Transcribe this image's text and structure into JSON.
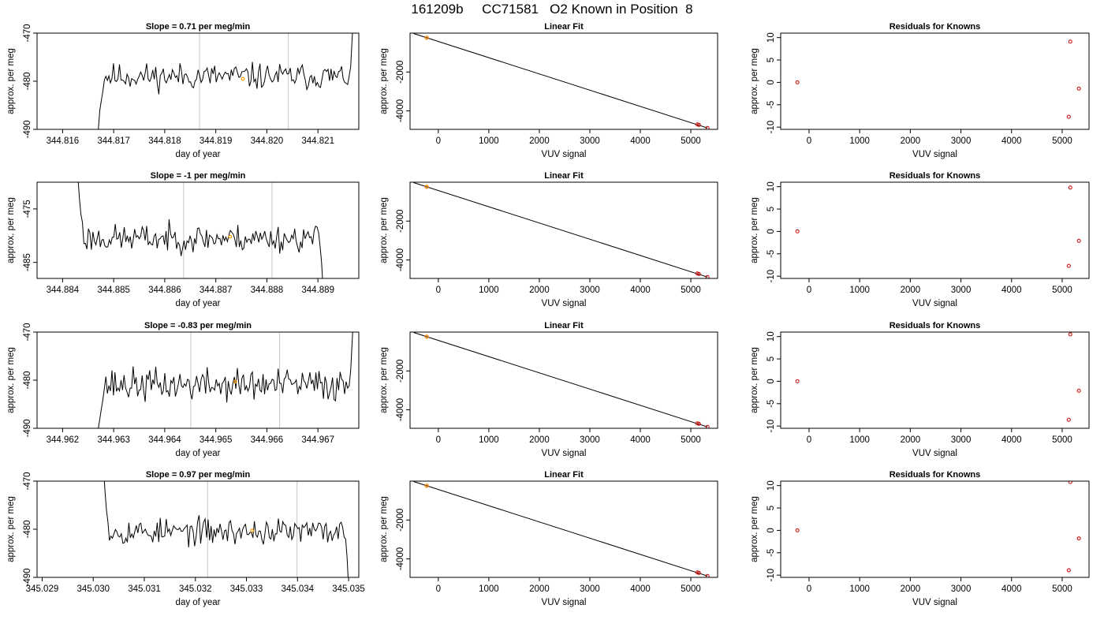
{
  "figure": {
    "title": "161209b     CC71581   O2 Known in Position  8"
  },
  "colors": {
    "trace": "#000000",
    "guide_line": "#c8c8c8",
    "known_point": "#cc0000",
    "highlight": "#ff9900",
    "fit_line": "#000000"
  },
  "chart_data": [
    {
      "type": "line",
      "title": "Slope =  0.71  per meg/min",
      "xlabel": "day of year",
      "ylabel": "approx. per meg",
      "xlim": [
        344.8155,
        344.8218
      ],
      "ylim": [
        -490,
        -470
      ],
      "x_ticks": [
        "344.816",
        "344.817",
        "344.818",
        "344.819",
        "344.820",
        "344.821"
      ],
      "x_tick_values": [
        344.816,
        344.817,
        344.818,
        344.819,
        344.82,
        344.821
      ],
      "y_ticks": [
        "-490",
        "-480",
        "-470"
      ],
      "y_tick_values": [
        -490,
        -480,
        -470
      ],
      "trace": {
        "x_start": 344.8167,
        "x_end": 344.8217,
        "n": 170,
        "level": -479,
        "noise": 1.6,
        "seed": 11,
        "head": [
          -490,
          -486,
          -484,
          -482
        ],
        "tail": [
          -477,
          -471,
          -466
        ]
      },
      "vlines": [
        344.81868,
        344.82042
      ],
      "highlight_point": {
        "x": 344.81953,
        "y": -479.5
      }
    },
    {
      "type": "scatter",
      "title": "Linear Fit",
      "xlabel": "VUV signal",
      "ylabel": "approx. per meg",
      "xlim": [
        -560,
        5530
      ],
      "ylim": [
        -4950,
        0
      ],
      "x_ticks": [
        "0",
        "1000",
        "2000",
        "3000",
        "4000",
        "5000"
      ],
      "x_tick_values": [
        0,
        1000,
        2000,
        3000,
        4000,
        5000
      ],
      "y_ticks": [
        "-4000",
        "-2000"
      ],
      "y_tick_values": [
        -4000,
        -2000
      ],
      "fit": {
        "x": [
          -490,
          5330
        ],
        "y": [
          -20,
          -4880
        ]
      },
      "points": [
        {
          "x": -230,
          "y": -236
        },
        {
          "x": 5130,
          "y": -4695
        },
        {
          "x": 5160,
          "y": -4720
        },
        {
          "x": 5330,
          "y": -4880
        }
      ],
      "highlight_point": {
        "x": -230,
        "y": -236
      }
    },
    {
      "type": "scatter",
      "title": "Residuals for Knowns",
      "xlabel": "VUV signal",
      "ylabel": "approx. per meg",
      "xlim": [
        -560,
        5530
      ],
      "ylim": [
        -10.5,
        11
      ],
      "x_ticks": [
        "0",
        "1000",
        "2000",
        "3000",
        "4000",
        "5000"
      ],
      "x_tick_values": [
        0,
        1000,
        2000,
        3000,
        4000,
        5000
      ],
      "y_ticks": [
        "-10",
        "-5",
        "0",
        "5",
        "10"
      ],
      "y_tick_values": [
        -10,
        -5,
        0,
        5,
        10
      ],
      "points": [
        {
          "x": -230,
          "y": 0
        },
        {
          "x": 5160,
          "y": 9.1
        },
        {
          "x": 5330,
          "y": -1.4
        },
        {
          "x": 5130,
          "y": -7.7
        }
      ]
    },
    {
      "type": "line",
      "title": "Slope =  -1  per meg/min",
      "xlabel": "day of year",
      "ylabel": "approx. per meg",
      "xlim": [
        344.8835,
        344.8898
      ],
      "ylim": [
        -488,
        -470
      ],
      "x_ticks": [
        "344.884",
        "344.885",
        "344.886",
        "344.887",
        "344.888",
        "344.889"
      ],
      "x_tick_values": [
        344.884,
        344.885,
        344.886,
        344.887,
        344.888,
        344.889
      ],
      "y_ticks": [
        "-485",
        "-475"
      ],
      "y_tick_values": [
        -485,
        -475
      ],
      "trace": {
        "x_start": 344.8843,
        "x_end": 344.8891,
        "n": 165,
        "level": -480.5,
        "noise": 1.5,
        "seed": 23,
        "head": [
          -469,
          -473,
          -476,
          -477.5
        ],
        "tail": [
          -482,
          -485,
          -490
        ]
      },
      "vlines": [
        344.88637,
        344.8881
      ],
      "highlight_point": {
        "x": 344.88728,
        "y": -480.2
      }
    },
    {
      "type": "scatter",
      "title": "Linear Fit",
      "xlabel": "VUV signal",
      "ylabel": "approx. per meg",
      "xlim": [
        -560,
        5530
      ],
      "ylim": [
        -4950,
        0
      ],
      "x_ticks": [
        "0",
        "1000",
        "2000",
        "3000",
        "4000",
        "5000"
      ],
      "x_tick_values": [
        0,
        1000,
        2000,
        3000,
        4000,
        5000
      ],
      "y_ticks": [
        "-4000",
        "-2000"
      ],
      "y_tick_values": [
        -4000,
        -2000
      ],
      "fit": {
        "x": [
          -490,
          5330
        ],
        "y": [
          -20,
          -4880
        ]
      },
      "points": [
        {
          "x": -230,
          "y": -236
        },
        {
          "x": 5130,
          "y": -4695
        },
        {
          "x": 5160,
          "y": -4720
        },
        {
          "x": 5330,
          "y": -4880
        }
      ],
      "highlight_point": {
        "x": -230,
        "y": -236
      }
    },
    {
      "type": "scatter",
      "title": "Residuals for Knowns",
      "xlabel": "VUV signal",
      "ylabel": "approx. per meg",
      "xlim": [
        -560,
        5530
      ],
      "ylim": [
        -10.5,
        11
      ],
      "x_ticks": [
        "0",
        "1000",
        "2000",
        "3000",
        "4000",
        "5000"
      ],
      "x_tick_values": [
        0,
        1000,
        2000,
        3000,
        4000,
        5000
      ],
      "y_ticks": [
        "-10",
        "-5",
        "0",
        "5",
        "10"
      ],
      "y_tick_values": [
        -10,
        -5,
        0,
        5,
        10
      ],
      "points": [
        {
          "x": -230,
          "y": 0
        },
        {
          "x": 5160,
          "y": 9.8
        },
        {
          "x": 5330,
          "y": -2.1
        },
        {
          "x": 5130,
          "y": -7.7
        }
      ]
    },
    {
      "type": "line",
      "title": "Slope =  -0.83  per meg/min",
      "xlabel": "day of year",
      "ylabel": "approx. per meg",
      "xlim": [
        344.9615,
        344.9678
      ],
      "ylim": [
        -490,
        -470
      ],
      "x_ticks": [
        "344.962",
        "344.963",
        "344.964",
        "344.965",
        "344.966",
        "344.967"
      ],
      "x_tick_values": [
        344.962,
        344.963,
        344.964,
        344.965,
        344.966,
        344.967
      ],
      "y_ticks": [
        "-490",
        "-480",
        "-470"
      ],
      "y_tick_values": [
        -490,
        -480,
        -470
      ],
      "trace": {
        "x_start": 344.9627,
        "x_end": 344.9677,
        "n": 170,
        "level": -481,
        "noise": 2.0,
        "seed": 37,
        "head": [
          -490,
          -488,
          -486,
          -484
        ],
        "tail": [
          -478,
          -472,
          -466
        ]
      },
      "vlines": [
        344.96451,
        344.96625
      ],
      "highlight_point": {
        "x": 344.96538,
        "y": -480.3
      }
    },
    {
      "type": "scatter",
      "title": "Linear Fit",
      "xlabel": "VUV signal",
      "ylabel": "approx. per meg",
      "xlim": [
        -560,
        5530
      ],
      "ylim": [
        -4950,
        0
      ],
      "x_ticks": [
        "0",
        "1000",
        "2000",
        "3000",
        "4000",
        "5000"
      ],
      "x_tick_values": [
        0,
        1000,
        2000,
        3000,
        4000,
        5000
      ],
      "y_ticks": [
        "-4000",
        "-2000"
      ],
      "y_tick_values": [
        -4000,
        -2000
      ],
      "fit": {
        "x": [
          -490,
          5330
        ],
        "y": [
          -20,
          -4880
        ]
      },
      "points": [
        {
          "x": -230,
          "y": -236
        },
        {
          "x": 5130,
          "y": -4695
        },
        {
          "x": 5160,
          "y": -4720
        },
        {
          "x": 5330,
          "y": -4880
        }
      ],
      "highlight_point": {
        "x": -230,
        "y": -236
      }
    },
    {
      "type": "scatter",
      "title": "Residuals for Knowns",
      "xlabel": "VUV signal",
      "ylabel": "approx. per meg",
      "xlim": [
        -560,
        5530
      ],
      "ylim": [
        -10.5,
        11
      ],
      "x_ticks": [
        "0",
        "1000",
        "2000",
        "3000",
        "4000",
        "5000"
      ],
      "x_tick_values": [
        0,
        1000,
        2000,
        3000,
        4000,
        5000
      ],
      "y_ticks": [
        "-10",
        "-5",
        "0",
        "5",
        "10"
      ],
      "y_tick_values": [
        -10,
        -5,
        0,
        5,
        10
      ],
      "points": [
        {
          "x": -230,
          "y": 0
        },
        {
          "x": 5160,
          "y": 10.5
        },
        {
          "x": 5330,
          "y": -2.1
        },
        {
          "x": 5130,
          "y": -8.6
        }
      ]
    },
    {
      "type": "line",
      "title": "Slope =  0.97  per meg/min",
      "xlabel": "day of year",
      "ylabel": "approx. per meg",
      "xlim": [
        345.0289,
        345.0352
      ],
      "ylim": [
        -490,
        -470
      ],
      "x_ticks": [
        "345.029",
        "345.030",
        "345.031",
        "345.032",
        "345.033",
        "345.034",
        "345.035"
      ],
      "x_tick_values": [
        345.029,
        345.03,
        345.031,
        345.032,
        345.033,
        345.034,
        345.035
      ],
      "y_ticks": [
        "-490",
        "-480",
        "-470"
      ],
      "y_tick_values": [
        -490,
        -480,
        -470
      ],
      "trace": {
        "x_start": 345.0302,
        "x_end": 345.035,
        "n": 165,
        "level": -480.5,
        "noise": 1.6,
        "seed": 53,
        "head": [
          -467,
          -472,
          -476,
          -478.5
        ],
        "tail": [
          -482,
          -486,
          -492
        ]
      },
      "vlines": [
        345.03224,
        345.03399
      ],
      "highlight_point": {
        "x": 345.03311,
        "y": -480.3
      }
    },
    {
      "type": "scatter",
      "title": "Linear Fit",
      "xlabel": "VUV signal",
      "ylabel": "approx. per meg",
      "xlim": [
        -560,
        5530
      ],
      "ylim": [
        -4950,
        0
      ],
      "x_ticks": [
        "0",
        "1000",
        "2000",
        "3000",
        "4000",
        "5000"
      ],
      "x_tick_values": [
        0,
        1000,
        2000,
        3000,
        4000,
        5000
      ],
      "y_ticks": [
        "-4000",
        "-2000"
      ],
      "y_tick_values": [
        -4000,
        -2000
      ],
      "fit": {
        "x": [
          -490,
          5330
        ],
        "y": [
          -20,
          -4880
        ]
      },
      "points": [
        {
          "x": -230,
          "y": -236
        },
        {
          "x": 5130,
          "y": -4695
        },
        {
          "x": 5160,
          "y": -4720
        },
        {
          "x": 5330,
          "y": -4880
        }
      ],
      "highlight_point": {
        "x": -230,
        "y": -236
      }
    },
    {
      "type": "scatter",
      "title": "Residuals for Knowns",
      "xlabel": "VUV signal",
      "ylabel": "approx. per meg",
      "xlim": [
        -560,
        5530
      ],
      "ylim": [
        -10.5,
        11
      ],
      "x_ticks": [
        "0",
        "1000",
        "2000",
        "3000",
        "4000",
        "5000"
      ],
      "x_tick_values": [
        0,
        1000,
        2000,
        3000,
        4000,
        5000
      ],
      "y_ticks": [
        "-10",
        "-5",
        "0",
        "5",
        "10"
      ],
      "y_tick_values": [
        -10,
        -5,
        0,
        5,
        10
      ],
      "points": [
        {
          "x": -230,
          "y": 0
        },
        {
          "x": 5160,
          "y": 10.8
        },
        {
          "x": 5330,
          "y": -1.8
        },
        {
          "x": 5130,
          "y": -8.9
        }
      ]
    }
  ]
}
